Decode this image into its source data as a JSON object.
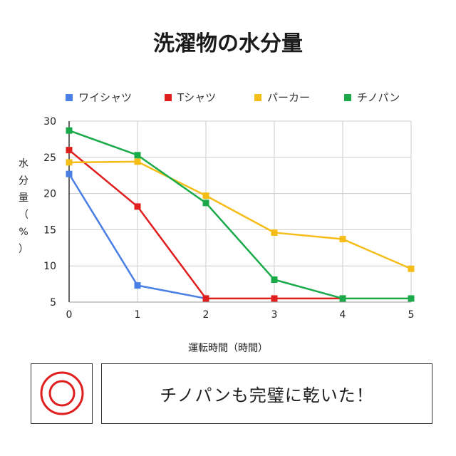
{
  "title": "洗濯物の水分量",
  "result_message": "チノパンも完璧に乾いた！",
  "mark": {
    "icon": "double-circle-icon",
    "color": "#e01e1e"
  },
  "chart_data": {
    "type": "line",
    "title": "洗濯物の水分量",
    "xlabel": "運転時間（時間）",
    "ylabel": "水分量（%）",
    "x": [
      0,
      1,
      2,
      3,
      4,
      5
    ],
    "xlim": [
      0,
      5
    ],
    "ylim": [
      5,
      30
    ],
    "yticks": [
      5,
      10,
      15,
      20,
      25,
      30
    ],
    "grid": true,
    "legend_position": "top",
    "series": [
      {
        "name": "ワイシャツ",
        "color": "#4a7fe6",
        "values": [
          22.7,
          7.3,
          5.5,
          null,
          null,
          null
        ]
      },
      {
        "name": "Tシャツ",
        "color": "#e01e1e",
        "values": [
          26.0,
          18.2,
          5.5,
          5.5,
          5.5,
          null
        ]
      },
      {
        "name": "パーカー",
        "color": "#f5bd18",
        "values": [
          24.3,
          24.4,
          19.7,
          14.6,
          13.7,
          9.6
        ]
      },
      {
        "name": "チノパン",
        "color": "#1aaa4a",
        "values": [
          28.7,
          25.3,
          18.7,
          8.1,
          5.5,
          5.5
        ]
      }
    ]
  }
}
